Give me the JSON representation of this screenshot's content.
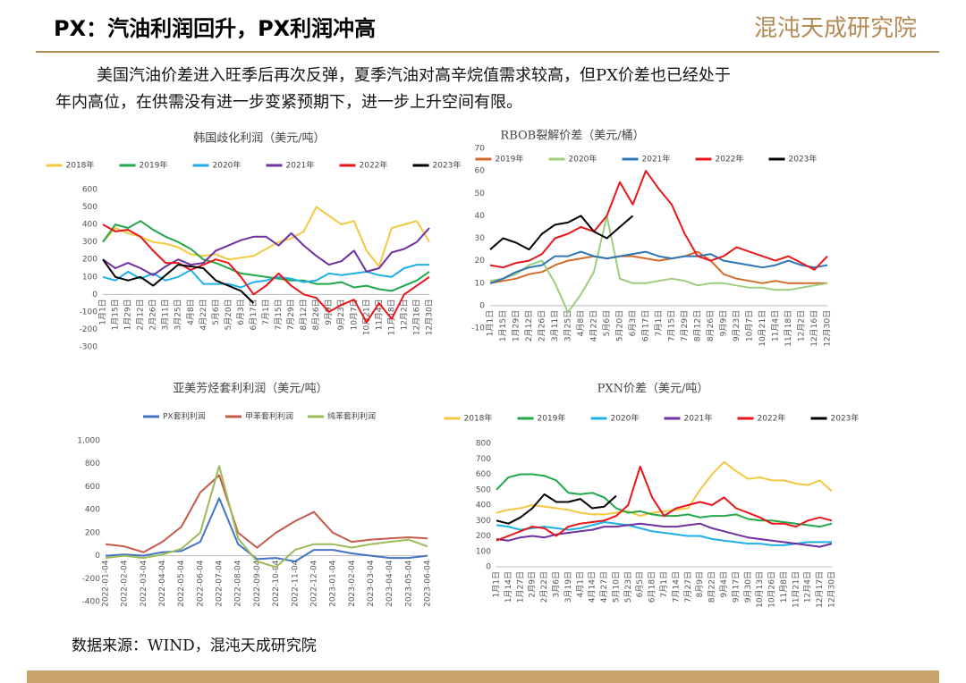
{
  "header": {
    "title": "PX：汽油利润回升，PX利润冲高",
    "logo": "混沌天成研究院"
  },
  "paragraph": [
    "美国汽油价差进入旺季后再次反弹，夏季汽油对高辛烷值需求较高，但PX价差也已经处于",
    "年内高位，在供需没有进一步变紧预期下，进一步上升空间有限。"
  ],
  "source": "数据来源：WIND，混沌天成研究院",
  "chart_data": [
    {
      "type": "line",
      "title": "韩国歧化利润（美元/吨）",
      "legend": "top",
      "grid": false,
      "categories": [
        "1月1日",
        "1月15日",
        "1月29日",
        "2月12日",
        "2月26日",
        "3月11日",
        "3月25日",
        "4月8日",
        "4月22日",
        "5月6日",
        "5月20日",
        "6月3日",
        "6月17日",
        "7月1日",
        "7月15日",
        "7月29日",
        "8月12日",
        "8月26日",
        "9月9日",
        "9月23日",
        "10月7日",
        "10月21日",
        "11月4日",
        "11月18日",
        "12月2日",
        "12月16日",
        "12月30日"
      ],
      "ylim": [
        -300,
        600
      ],
      "yticks": [
        -300,
        -200,
        -100,
        0,
        100,
        200,
        300,
        400,
        500,
        600
      ],
      "series": [
        {
          "name": "2018年",
          "color": "#f5c842",
          "values": [
            300,
            380,
            350,
            330,
            300,
            290,
            270,
            230,
            220,
            230,
            200,
            210,
            220,
            260,
            300,
            320,
            360,
            500,
            450,
            400,
            420,
            250,
            160,
            380,
            400,
            420,
            300
          ]
        },
        {
          "name": "2019年",
          "color": "#22a84a",
          "values": [
            300,
            400,
            380,
            420,
            370,
            330,
            300,
            260,
            200,
            180,
            150,
            120,
            110,
            100,
            90,
            80,
            80,
            60,
            60,
            70,
            40,
            50,
            30,
            20,
            50,
            80,
            130
          ]
        },
        {
          "name": "2020年",
          "color": "#1fb0e8",
          "values": [
            100,
            80,
            130,
            90,
            120,
            80,
            100,
            140,
            60,
            60,
            60,
            40,
            70,
            80,
            100,
            90,
            70,
            80,
            120,
            110,
            120,
            130,
            110,
            100,
            150,
            170,
            170
          ]
        },
        {
          "name": "2021年",
          "color": "#7030a0",
          "values": [
            200,
            150,
            180,
            150,
            110,
            160,
            200,
            170,
            180,
            250,
            280,
            310,
            330,
            330,
            280,
            350,
            280,
            220,
            170,
            190,
            250,
            130,
            150,
            240,
            260,
            300,
            380
          ]
        },
        {
          "name": "2022年",
          "color": "#e8161b",
          "values": [
            400,
            360,
            370,
            330,
            250,
            180,
            180,
            140,
            170,
            200,
            180,
            100,
            0,
            50,
            120,
            50,
            0,
            -20,
            -100,
            -60,
            -30,
            -160,
            -50,
            -140,
            0,
            50,
            100
          ]
        },
        {
          "name": "2023年",
          "color": "#000000",
          "values": [
            200,
            100,
            80,
            100,
            50,
            110,
            170,
            160,
            150,
            80,
            50,
            20,
            -50,
            null,
            null,
            null,
            null,
            null,
            null,
            null,
            null,
            null,
            null,
            null,
            null,
            null,
            null
          ]
        }
      ]
    },
    {
      "type": "line",
      "title": "RBOB裂解价差（美元/桶）",
      "legend": "top",
      "grid": false,
      "categories": [
        "1月1日",
        "1月15日",
        "1月29日",
        "2月12日",
        "2月26日",
        "3月11日",
        "3月25日",
        "4月8日",
        "4月22日",
        "5月6日",
        "5月20日",
        "6月3日",
        "6月17日",
        "7月1日",
        "7月15日",
        "7月29日",
        "8月12日",
        "8月26日",
        "9月9日",
        "9月23日",
        "10月7日",
        "10月21日",
        "11月4日",
        "11月18日",
        "12月2日",
        "12月16日",
        "12月30日"
      ],
      "ylim": [
        -10,
        70
      ],
      "yticks": [
        -10,
        0,
        10,
        20,
        30,
        40,
        50,
        60,
        70
      ],
      "series": [
        {
          "name": "2019年",
          "color": "#d46a2a",
          "values": [
            10,
            11,
            12,
            14,
            15,
            18,
            20,
            21,
            22,
            21,
            22,
            22,
            21,
            20,
            21,
            22,
            24,
            20,
            14,
            12,
            11,
            10,
            11,
            10,
            10,
            10,
            10
          ]
        },
        {
          "name": "2020年",
          "color": "#9dcc7e",
          "values": [
            11,
            12,
            14,
            18,
            20,
            10,
            -3,
            5,
            15,
            40,
            12,
            10,
            10,
            11,
            12,
            11,
            9,
            10,
            10,
            9,
            8,
            8,
            7,
            7,
            8,
            9,
            10
          ]
        },
        {
          "name": "2021年",
          "color": "#2e75b6",
          "values": [
            10,
            12,
            15,
            17,
            18,
            22,
            22,
            24,
            22,
            21,
            22,
            23,
            24,
            22,
            21,
            22,
            22,
            23,
            20,
            19,
            18,
            17,
            18,
            20,
            18,
            17,
            18
          ]
        },
        {
          "name": "2022年",
          "color": "#e8161b",
          "values": [
            18,
            17,
            19,
            20,
            23,
            30,
            32,
            35,
            33,
            40,
            55,
            45,
            60,
            52,
            45,
            32,
            22,
            20,
            22,
            26,
            24,
            22,
            20,
            22,
            19,
            16,
            22
          ]
        },
        {
          "name": "2023年",
          "color": "#000000",
          "values": [
            25,
            30,
            28,
            25,
            32,
            36,
            37,
            40,
            33,
            30,
            35,
            40,
            null,
            null,
            null,
            null,
            null,
            null,
            null,
            null,
            null,
            null,
            null,
            null,
            null,
            null,
            null
          ]
        }
      ]
    },
    {
      "type": "line",
      "title": "亚美芳烃套利利润（美元/吨）",
      "legend": "top",
      "grid": false,
      "categories": [
        "2022-01-04",
        "2022-02-04",
        "2022-03-04",
        "2022-04-04",
        "2022-05-04",
        "2022-06-04",
        "2022-07-04",
        "2022-08-04",
        "2022-09-04",
        "2022-10-04",
        "2022-11-04",
        "2022-12-04",
        "2023-01-04",
        "2023-02-04",
        "2023-03-04",
        "2023-04-04",
        "2023-05-04",
        "2023-06-04"
      ],
      "ylim": [
        -400,
        1000
      ],
      "yticks": [
        -400,
        -200,
        0,
        200,
        400,
        600,
        800,
        {
          "value": 1000,
          "label": "1,000"
        }
      ],
      "series": [
        {
          "name": "PX套利利润",
          "color": "#4472c4",
          "values": [
            0,
            10,
            0,
            30,
            40,
            120,
            500,
            100,
            -30,
            -20,
            -50,
            50,
            50,
            20,
            0,
            -20,
            -20,
            0
          ]
        },
        {
          "name": "甲苯套利利润",
          "color": "#c55a4a",
          "values": [
            100,
            80,
            30,
            120,
            250,
            550,
            700,
            200,
            70,
            200,
            300,
            380,
            200,
            120,
            140,
            150,
            160,
            150
          ]
        },
        {
          "name": "纯苯套利利润",
          "color": "#9bbb59",
          "values": [
            -20,
            0,
            -20,
            10,
            60,
            200,
            780,
            150,
            -50,
            -100,
            50,
            100,
            100,
            70,
            100,
            120,
            140,
            80
          ]
        }
      ]
    },
    {
      "type": "line",
      "title": "PXN价差（美元/吨）",
      "legend": "top",
      "grid": false,
      "categories": [
        "1月1日",
        "1月14日",
        "1月27日",
        "2月9日",
        "2月22日",
        "3月6日",
        "3月19日",
        "4月1日",
        "4月14日",
        "4月27日",
        "5月10日",
        "5月23日",
        "6月5日",
        "6月18日",
        "7月1日",
        "7月14日",
        "7月27日",
        "8月9日",
        "8月22日",
        "9月4日",
        "9月17日",
        "9月30日",
        "10月13日",
        "10月26日",
        "11月8日",
        "11月21日",
        "12月4日",
        "12月17日",
        "12月30日"
      ],
      "ylim": [
        0,
        800
      ],
      "yticks": [
        0,
        100,
        200,
        300,
        400,
        500,
        600,
        700,
        800
      ],
      "series": [
        {
          "name": "2018年",
          "color": "#f5c842",
          "values": [
            350,
            370,
            380,
            400,
            390,
            380,
            370,
            350,
            340,
            340,
            350,
            360,
            330,
            350,
            360,
            370,
            380,
            500,
            600,
            680,
            620,
            570,
            580,
            560,
            560,
            540,
            530,
            560,
            490
          ]
        },
        {
          "name": "2019年",
          "color": "#22a84a",
          "values": [
            500,
            580,
            600,
            600,
            590,
            560,
            480,
            470,
            480,
            450,
            380,
            350,
            360,
            340,
            330,
            330,
            340,
            320,
            330,
            330,
            340,
            310,
            300,
            300,
            290,
            280,
            270,
            260,
            280
          ]
        },
        {
          "name": "2020年",
          "color": "#1fb0e8",
          "values": [
            270,
            260,
            240,
            250,
            260,
            250,
            240,
            250,
            270,
            290,
            280,
            270,
            250,
            230,
            220,
            210,
            200,
            200,
            180,
            170,
            160,
            150,
            150,
            140,
            140,
            150,
            160,
            160,
            160
          ]
        },
        {
          "name": "2021年",
          "color": "#7030a0",
          "values": [
            180,
            170,
            190,
            200,
            190,
            210,
            220,
            230,
            240,
            260,
            260,
            270,
            280,
            270,
            260,
            260,
            270,
            280,
            250,
            230,
            210,
            190,
            180,
            170,
            160,
            150,
            140,
            130,
            150
          ]
        },
        {
          "name": "2022年",
          "color": "#e8161b",
          "values": [
            170,
            200,
            230,
            260,
            250,
            200,
            260,
            280,
            290,
            300,
            330,
            400,
            650,
            450,
            330,
            380,
            400,
            420,
            400,
            450,
            380,
            350,
            320,
            280,
            280,
            260,
            300,
            320,
            300
          ]
        },
        {
          "name": "2023年",
          "color": "#000000",
          "values": [
            300,
            280,
            320,
            380,
            470,
            420,
            420,
            440,
            380,
            390,
            460,
            null,
            null,
            null,
            null,
            null,
            null,
            null,
            null,
            null,
            null,
            null,
            null,
            null,
            null,
            null,
            null,
            null,
            null
          ]
        }
      ]
    }
  ]
}
